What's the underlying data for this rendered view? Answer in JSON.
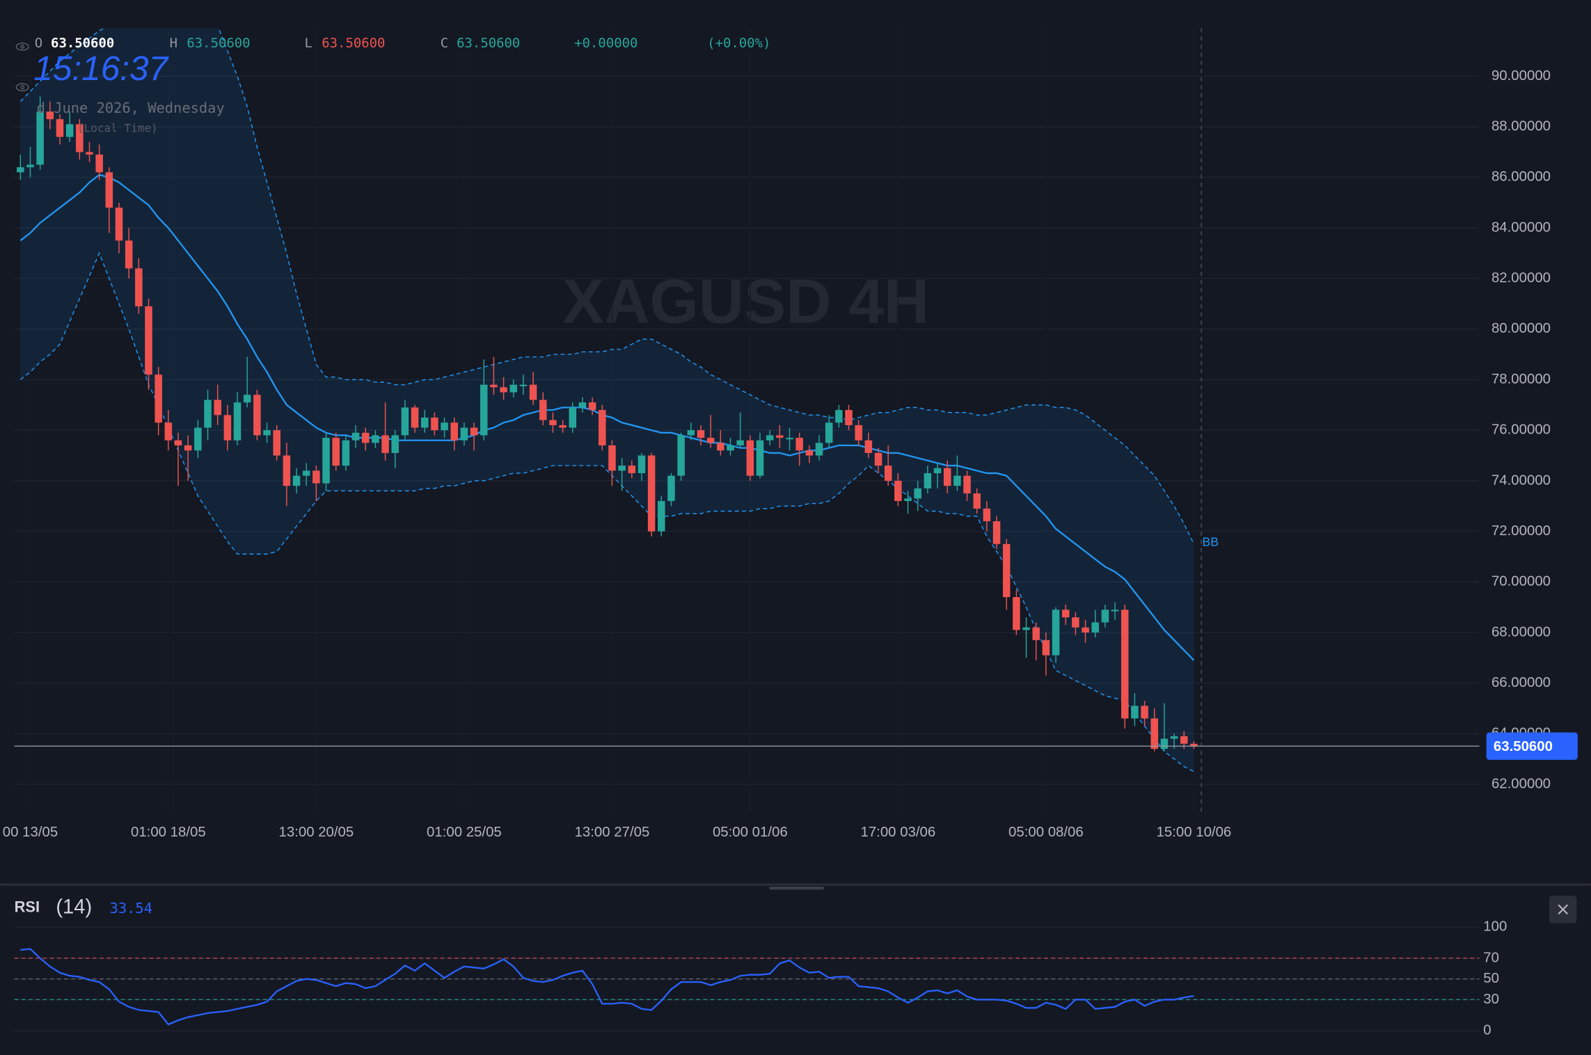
{
  "chart_data": {
    "type": "candlestick",
    "title": "XAGUSD 4H",
    "header": {
      "open_label": "O",
      "open": {
        "value": 63.506,
        "label": "63.50600"
      },
      "high_label": "H",
      "high": {
        "value": 63.506,
        "label": "63.50600"
      },
      "low_label": "L",
      "low": {
        "value": 63.506,
        "label": "63.50600"
      },
      "close_label": "C",
      "close": {
        "value": 63.506,
        "label": "63.50600"
      },
      "change": {
        "value": 0,
        "label": "+0.00000"
      },
      "change_percent": {
        "value": 0,
        "label": "(+0.00%)"
      },
      "time": "15:16:37",
      "date": "d June 2026, Wednesday",
      "timezone": "(Local Time)"
    },
    "up_color": "#26a69a",
    "down_color": "#ef5350",
    "categories": [
      null,
      "00 13/05",
      null,
      null,
      null,
      null,
      null,
      null,
      null,
      null,
      null,
      null,
      null,
      null,
      null,
      "01:00 18/05",
      null,
      null,
      null,
      null,
      null,
      null,
      null,
      null,
      null,
      null,
      null,
      null,
      null,
      null,
      "13:00 20/05",
      null,
      null,
      null,
      null,
      null,
      null,
      null,
      null,
      null,
      null,
      null,
      null,
      null,
      null,
      "01:00 25/05",
      null,
      null,
      null,
      null,
      null,
      null,
      null,
      null,
      null,
      null,
      null,
      null,
      null,
      null,
      "13:00 27/05",
      null,
      null,
      null,
      null,
      null,
      null,
      null,
      null,
      null,
      null,
      null,
      null,
      null,
      "05:00 01/06",
      null,
      null,
      null,
      null,
      null,
      null,
      null,
      null,
      null,
      null,
      null,
      null,
      null,
      null,
      "17:00 03/06",
      null,
      null,
      null,
      null,
      null,
      null,
      null,
      null,
      null,
      null,
      null,
      null,
      null,
      null,
      "05:00 08/06",
      null,
      null,
      null,
      null,
      null,
      null,
      null,
      null,
      null,
      null,
      null,
      null,
      null,
      null,
      "15:00 10/06"
    ],
    "ohlc": [
      [
        86.2,
        86.9,
        85.9,
        86.4
      ],
      [
        86.4,
        87.2,
        86.0,
        86.5
      ],
      [
        86.5,
        89.2,
        86.3,
        88.6
      ],
      [
        88.6,
        89.0,
        87.9,
        88.3
      ],
      [
        88.3,
        88.5,
        87.3,
        87.6
      ],
      [
        87.6,
        88.6,
        87.4,
        88.1
      ],
      [
        88.1,
        88.3,
        86.7,
        87.0
      ],
      [
        87.0,
        87.4,
        86.6,
        86.9
      ],
      [
        86.9,
        87.3,
        85.9,
        86.2
      ],
      [
        86.2,
        86.4,
        83.8,
        84.8
      ],
      [
        84.8,
        85.0,
        83.0,
        83.5
      ],
      [
        83.5,
        84.0,
        82.0,
        82.4
      ],
      [
        82.4,
        82.8,
        80.6,
        80.9
      ],
      [
        80.9,
        81.2,
        77.6,
        78.2
      ],
      [
        78.2,
        78.5,
        75.8,
        76.3
      ],
      [
        76.3,
        76.8,
        75.2,
        75.6
      ],
      [
        75.6,
        75.9,
        73.8,
        75.4
      ],
      [
        75.4,
        75.8,
        74.0,
        75.2
      ],
      [
        75.2,
        76.4,
        74.9,
        76.1
      ],
      [
        76.1,
        77.6,
        75.6,
        77.2
      ],
      [
        77.2,
        77.8,
        76.2,
        76.6
      ],
      [
        76.6,
        77.0,
        75.2,
        75.6
      ],
      [
        75.6,
        77.5,
        75.4,
        77.1
      ],
      [
        77.1,
        78.9,
        76.9,
        77.4
      ],
      [
        77.4,
        77.6,
        75.6,
        75.8
      ],
      [
        75.8,
        76.3,
        75.5,
        76.0
      ],
      [
        76.0,
        76.2,
        74.8,
        75.0
      ],
      [
        75.0,
        75.5,
        73.0,
        73.8
      ],
      [
        73.8,
        74.5,
        73.5,
        74.2
      ],
      [
        74.2,
        74.7,
        73.8,
        74.4
      ],
      [
        74.4,
        74.6,
        73.2,
        73.9
      ],
      [
        73.9,
        75.9,
        73.6,
        75.7
      ],
      [
        75.7,
        75.9,
        74.4,
        74.6
      ],
      [
        74.6,
        75.8,
        74.4,
        75.6
      ],
      [
        75.6,
        76.2,
        75.3,
        75.9
      ],
      [
        75.9,
        76.1,
        75.2,
        75.5
      ],
      [
        75.5,
        76.0,
        75.3,
        75.8
      ],
      [
        75.8,
        77.1,
        74.8,
        75.1
      ],
      [
        75.1,
        76.0,
        74.5,
        75.8
      ],
      [
        75.8,
        77.2,
        75.6,
        76.9
      ],
      [
        76.9,
        77.0,
        75.9,
        76.1
      ],
      [
        76.1,
        76.8,
        75.9,
        76.5
      ],
      [
        76.5,
        76.7,
        75.8,
        76.0
      ],
      [
        76.0,
        76.5,
        75.7,
        76.3
      ],
      [
        76.3,
        76.5,
        75.2,
        75.6
      ],
      [
        75.6,
        76.3,
        75.4,
        76.1
      ],
      [
        76.1,
        76.3,
        75.2,
        75.8
      ],
      [
        75.8,
        78.8,
        75.6,
        77.8
      ],
      [
        77.8,
        78.9,
        77.4,
        77.7
      ],
      [
        77.7,
        78.1,
        77.2,
        77.5
      ],
      [
        77.5,
        78.0,
        77.3,
        77.8
      ],
      [
        77.8,
        78.2,
        77.4,
        77.8
      ],
      [
        77.8,
        78.3,
        77.0,
        77.2
      ],
      [
        77.2,
        77.5,
        76.2,
        76.4
      ],
      [
        76.4,
        76.7,
        75.9,
        76.2
      ],
      [
        76.2,
        76.4,
        75.9,
        76.1
      ],
      [
        76.1,
        77.1,
        75.9,
        76.9
      ],
      [
        76.9,
        77.3,
        76.7,
        77.1
      ],
      [
        77.1,
        77.3,
        76.6,
        76.8
      ],
      [
        76.8,
        77.0,
        75.2,
        75.4
      ],
      [
        75.4,
        75.6,
        73.8,
        74.4
      ],
      [
        74.4,
        74.9,
        73.6,
        74.6
      ],
      [
        74.6,
        74.8,
        74.1,
        74.3
      ],
      [
        74.3,
        75.1,
        74.0,
        75.0
      ],
      [
        75.0,
        75.1,
        71.8,
        72.0
      ],
      [
        72.0,
        73.4,
        71.8,
        73.2
      ],
      [
        73.2,
        74.3,
        73.0,
        74.2
      ],
      [
        74.2,
        75.9,
        74.0,
        75.8
      ],
      [
        75.8,
        76.3,
        75.6,
        76.0
      ],
      [
        76.0,
        76.2,
        75.4,
        75.7
      ],
      [
        75.7,
        76.6,
        75.3,
        75.5
      ],
      [
        75.5,
        76.0,
        75.0,
        75.2
      ],
      [
        75.2,
        75.7,
        75.0,
        75.4
      ],
      [
        75.4,
        76.7,
        75.3,
        75.6
      ],
      [
        75.6,
        75.8,
        74.0,
        74.2
      ],
      [
        74.2,
        75.9,
        74.1,
        75.6
      ],
      [
        75.6,
        76.0,
        75.4,
        75.8
      ],
      [
        75.8,
        76.2,
        75.3,
        75.7
      ],
      [
        75.7,
        76.1,
        75.2,
        75.7
      ],
      [
        75.7,
        75.9,
        74.6,
        75.2
      ],
      [
        75.2,
        75.4,
        74.7,
        75.0
      ],
      [
        75.0,
        75.8,
        74.8,
        75.5
      ],
      [
        75.5,
        76.6,
        75.3,
        76.3
      ],
      [
        76.3,
        77.0,
        76.1,
        76.8
      ],
      [
        76.8,
        77.0,
        76.0,
        76.2
      ],
      [
        76.2,
        76.4,
        75.4,
        75.6
      ],
      [
        75.6,
        75.9,
        74.9,
        75.1
      ],
      [
        75.1,
        75.3,
        74.3,
        74.6
      ],
      [
        74.6,
        75.4,
        73.8,
        74.0
      ],
      [
        74.0,
        74.3,
        73.0,
        73.2
      ],
      [
        73.2,
        73.6,
        72.7,
        73.3
      ],
      [
        73.3,
        74.0,
        72.8,
        73.7
      ],
      [
        73.7,
        74.6,
        73.5,
        74.3
      ],
      [
        74.3,
        74.7,
        73.7,
        74.5
      ],
      [
        74.5,
        74.8,
        73.5,
        73.8
      ],
      [
        73.8,
        75.0,
        73.6,
        74.2
      ],
      [
        74.2,
        74.4,
        73.2,
        73.5
      ],
      [
        73.5,
        73.7,
        72.7,
        72.9
      ],
      [
        72.9,
        73.2,
        72.0,
        72.4
      ],
      [
        72.4,
        72.6,
        71.3,
        71.5
      ],
      [
        71.5,
        71.7,
        68.9,
        69.4
      ],
      [
        69.4,
        69.7,
        67.9,
        68.1
      ],
      [
        68.1,
        68.6,
        67.0,
        68.2
      ],
      [
        68.2,
        68.4,
        66.9,
        67.7
      ],
      [
        67.7,
        68.0,
        66.3,
        67.1
      ],
      [
        67.1,
        69.0,
        66.8,
        68.9
      ],
      [
        68.9,
        69.1,
        68.3,
        68.6
      ],
      [
        68.6,
        68.8,
        67.9,
        68.2
      ],
      [
        68.2,
        68.5,
        67.6,
        68.0
      ],
      [
        68.0,
        68.9,
        67.8,
        68.4
      ],
      [
        68.4,
        69.1,
        68.2,
        68.9
      ],
      [
        68.9,
        69.2,
        68.5,
        68.9
      ],
      [
        68.9,
        69.1,
        64.2,
        64.6
      ],
      [
        64.6,
        65.6,
        64.3,
        65.1
      ],
      [
        65.1,
        65.3,
        64.3,
        64.6
      ],
      [
        64.6,
        65.0,
        63.3,
        63.4
      ],
      [
        63.4,
        65.2,
        63.3,
        63.8
      ],
      [
        63.8,
        64.0,
        63.4,
        63.9
      ],
      [
        63.9,
        64.1,
        63.4,
        63.6
      ],
      [
        63.6,
        63.7,
        63.4,
        63.506
      ]
    ],
    "bb": {
      "name": "BB",
      "color": "#2196f3",
      "upper": [
        89.0,
        89.4,
        89.8,
        90.2,
        90.6,
        90.9,
        91.2,
        91.5,
        91.8,
        92.0,
        92.3,
        92.5,
        92.8,
        93.0,
        93.0,
        93.0,
        93.0,
        93.0,
        93.0,
        93.0,
        92.0,
        91.0,
        90.0,
        88.8,
        87.2,
        85.8,
        84.4,
        83.0,
        81.4,
        80.0,
        78.6,
        78.1,
        78.1,
        78.0,
        78.0,
        78.0,
        77.9,
        77.9,
        77.8,
        77.8,
        77.9,
        78.0,
        78.0,
        78.1,
        78.2,
        78.3,
        78.4,
        78.5,
        78.6,
        78.7,
        78.8,
        78.9,
        78.9,
        78.9,
        79.0,
        79.0,
        79.0,
        79.1,
        79.1,
        79.1,
        79.2,
        79.2,
        79.4,
        79.6,
        79.6,
        79.4,
        79.2,
        79.0,
        78.7,
        78.5,
        78.2,
        78.0,
        77.8,
        77.6,
        77.4,
        77.2,
        77.0,
        76.9,
        76.8,
        76.7,
        76.6,
        76.6,
        76.5,
        76.5,
        76.4,
        76.5,
        76.6,
        76.7,
        76.7,
        76.8,
        76.9,
        76.9,
        76.8,
        76.8,
        76.7,
        76.7,
        76.7,
        76.6,
        76.6,
        76.7,
        76.8,
        76.9,
        77.0,
        77.0,
        77.0,
        76.9,
        76.9,
        76.8,
        76.6,
        76.3,
        76.0,
        75.7,
        75.4,
        75.0,
        74.6,
        74.2,
        73.6,
        73.0,
        72.3,
        71.5
      ],
      "middle": [
        83.5,
        83.8,
        84.2,
        84.5,
        84.8,
        85.1,
        85.4,
        85.8,
        86.1,
        86.0,
        85.8,
        85.5,
        85.2,
        84.9,
        84.4,
        84.0,
        83.5,
        83.0,
        82.5,
        82.0,
        81.5,
        80.9,
        80.2,
        79.6,
        78.9,
        78.3,
        77.6,
        77.0,
        76.7,
        76.4,
        76.1,
        75.9,
        75.8,
        75.8,
        75.7,
        75.7,
        75.7,
        75.7,
        75.6,
        75.6,
        75.6,
        75.6,
        75.6,
        75.6,
        75.6,
        75.7,
        75.8,
        76.0,
        76.1,
        76.3,
        76.4,
        76.6,
        76.7,
        76.8,
        76.8,
        76.9,
        76.9,
        76.9,
        76.8,
        76.6,
        76.5,
        76.3,
        76.2,
        76.1,
        76.0,
        75.9,
        75.9,
        75.8,
        75.7,
        75.6,
        75.5,
        75.5,
        75.4,
        75.3,
        75.3,
        75.2,
        75.1,
        75.1,
        75.0,
        75.1,
        75.2,
        75.2,
        75.3,
        75.4,
        75.4,
        75.4,
        75.3,
        75.2,
        75.1,
        75.1,
        75.0,
        74.9,
        74.8,
        74.7,
        74.6,
        74.6,
        74.5,
        74.4,
        74.3,
        74.3,
        74.2,
        73.8,
        73.4,
        73.0,
        72.6,
        72.1,
        71.8,
        71.5,
        71.2,
        70.9,
        70.6,
        70.4,
        70.1,
        69.6,
        69.1,
        68.6,
        68.1,
        67.7,
        67.3,
        66.9
      ],
      "lower": [
        78.0,
        78.3,
        78.7,
        79.0,
        79.4,
        80.3,
        81.2,
        82.1,
        83.0,
        82.0,
        81.0,
        80.0,
        78.9,
        77.8,
        77.0,
        76.1,
        75.2,
        74.3,
        73.4,
        72.8,
        72.2,
        71.6,
        71.1,
        71.1,
        71.1,
        71.1,
        71.2,
        71.7,
        72.2,
        72.7,
        73.2,
        73.6,
        73.6,
        73.6,
        73.6,
        73.6,
        73.6,
        73.6,
        73.6,
        73.6,
        73.6,
        73.7,
        73.7,
        73.8,
        73.8,
        73.9,
        74.0,
        74.0,
        74.1,
        74.2,
        74.3,
        74.3,
        74.4,
        74.5,
        74.6,
        74.6,
        74.6,
        74.6,
        74.6,
        74.6,
        74.2,
        73.8,
        73.4,
        73.0,
        72.6,
        72.6,
        72.6,
        72.7,
        72.7,
        72.7,
        72.8,
        72.8,
        72.8,
        72.8,
        72.8,
        72.9,
        72.9,
        73.0,
        73.0,
        73.0,
        73.1,
        73.1,
        73.2,
        73.5,
        73.9,
        74.2,
        74.6,
        74.3,
        74.0,
        73.7,
        73.4,
        73.1,
        72.8,
        72.8,
        72.7,
        72.7,
        72.6,
        72.6,
        71.8,
        71.2,
        70.6,
        69.8,
        69.0,
        68.1,
        67.3,
        66.5,
        66.3,
        66.1,
        65.9,
        65.7,
        65.5,
        65.4,
        65.3,
        64.8,
        64.3,
        63.8,
        63.3,
        63.0,
        62.7,
        62.5
      ]
    },
    "last_price": {
      "value": 63.506,
      "label": "63.50600"
    },
    "ylim": [
      60.92,
      91.89
    ],
    "yticks": [
      {
        "value": 62,
        "label": "62.00000"
      },
      {
        "value": 64,
        "label": "64.00000"
      },
      {
        "value": 66,
        "label": "66.00000"
      },
      {
        "value": 68,
        "label": "68.00000"
      },
      {
        "value": 70,
        "label": "70.00000"
      },
      {
        "value": 72,
        "label": "72.00000"
      },
      {
        "value": 74,
        "label": "74.00000"
      },
      {
        "value": 76,
        "label": "76.00000"
      },
      {
        "value": 78,
        "label": "78.00000"
      },
      {
        "value": 80,
        "label": "80.00000"
      },
      {
        "value": 82,
        "label": "82.00000"
      },
      {
        "value": 84,
        "label": "84.00000"
      },
      {
        "value": 86,
        "label": "86.00000"
      },
      {
        "value": 88,
        "label": "88.00000"
      },
      {
        "value": 90,
        "label": "90.00000"
      }
    ],
    "grid": true,
    "rsi": {
      "name": "RSI",
      "period_label": "(14)",
      "color": "#2962ff",
      "values": [
        78,
        79,
        70,
        62,
        56,
        53,
        52,
        49,
        47,
        40,
        28,
        23,
        20,
        19,
        18,
        6,
        10,
        13,
        15,
        17,
        18,
        19,
        21,
        23,
        25,
        28,
        38,
        43,
        48,
        50,
        49,
        46,
        43,
        46,
        45,
        41,
        43,
        49,
        55,
        63,
        58,
        65,
        58,
        51,
        57,
        62,
        61,
        60,
        64,
        69,
        62,
        51,
        48,
        47,
        49,
        53,
        56,
        58,
        45,
        26,
        26,
        27,
        26,
        21,
        20,
        29,
        40,
        47,
        47,
        47,
        44,
        47,
        49,
        53,
        54,
        54,
        55,
        65,
        68,
        61,
        56,
        57,
        51,
        52,
        52,
        43,
        42,
        41,
        38,
        32,
        27,
        32,
        38,
        39,
        36,
        39,
        33,
        30,
        30,
        30,
        29,
        26,
        22,
        22,
        27,
        25,
        21,
        30,
        30,
        21,
        22,
        23,
        28,
        30,
        24,
        28,
        30,
        30,
        32,
        33.54
      ],
      "ylim": [
        0,
        100
      ],
      "yticks": [
        0,
        30,
        50,
        70,
        100
      ],
      "levels": [
        {
          "value": 70,
          "color": "#ef5350"
        },
        {
          "value": 50,
          "color": "#787b86"
        },
        {
          "value": 30,
          "color": "#26a69a"
        }
      ]
    }
  }
}
